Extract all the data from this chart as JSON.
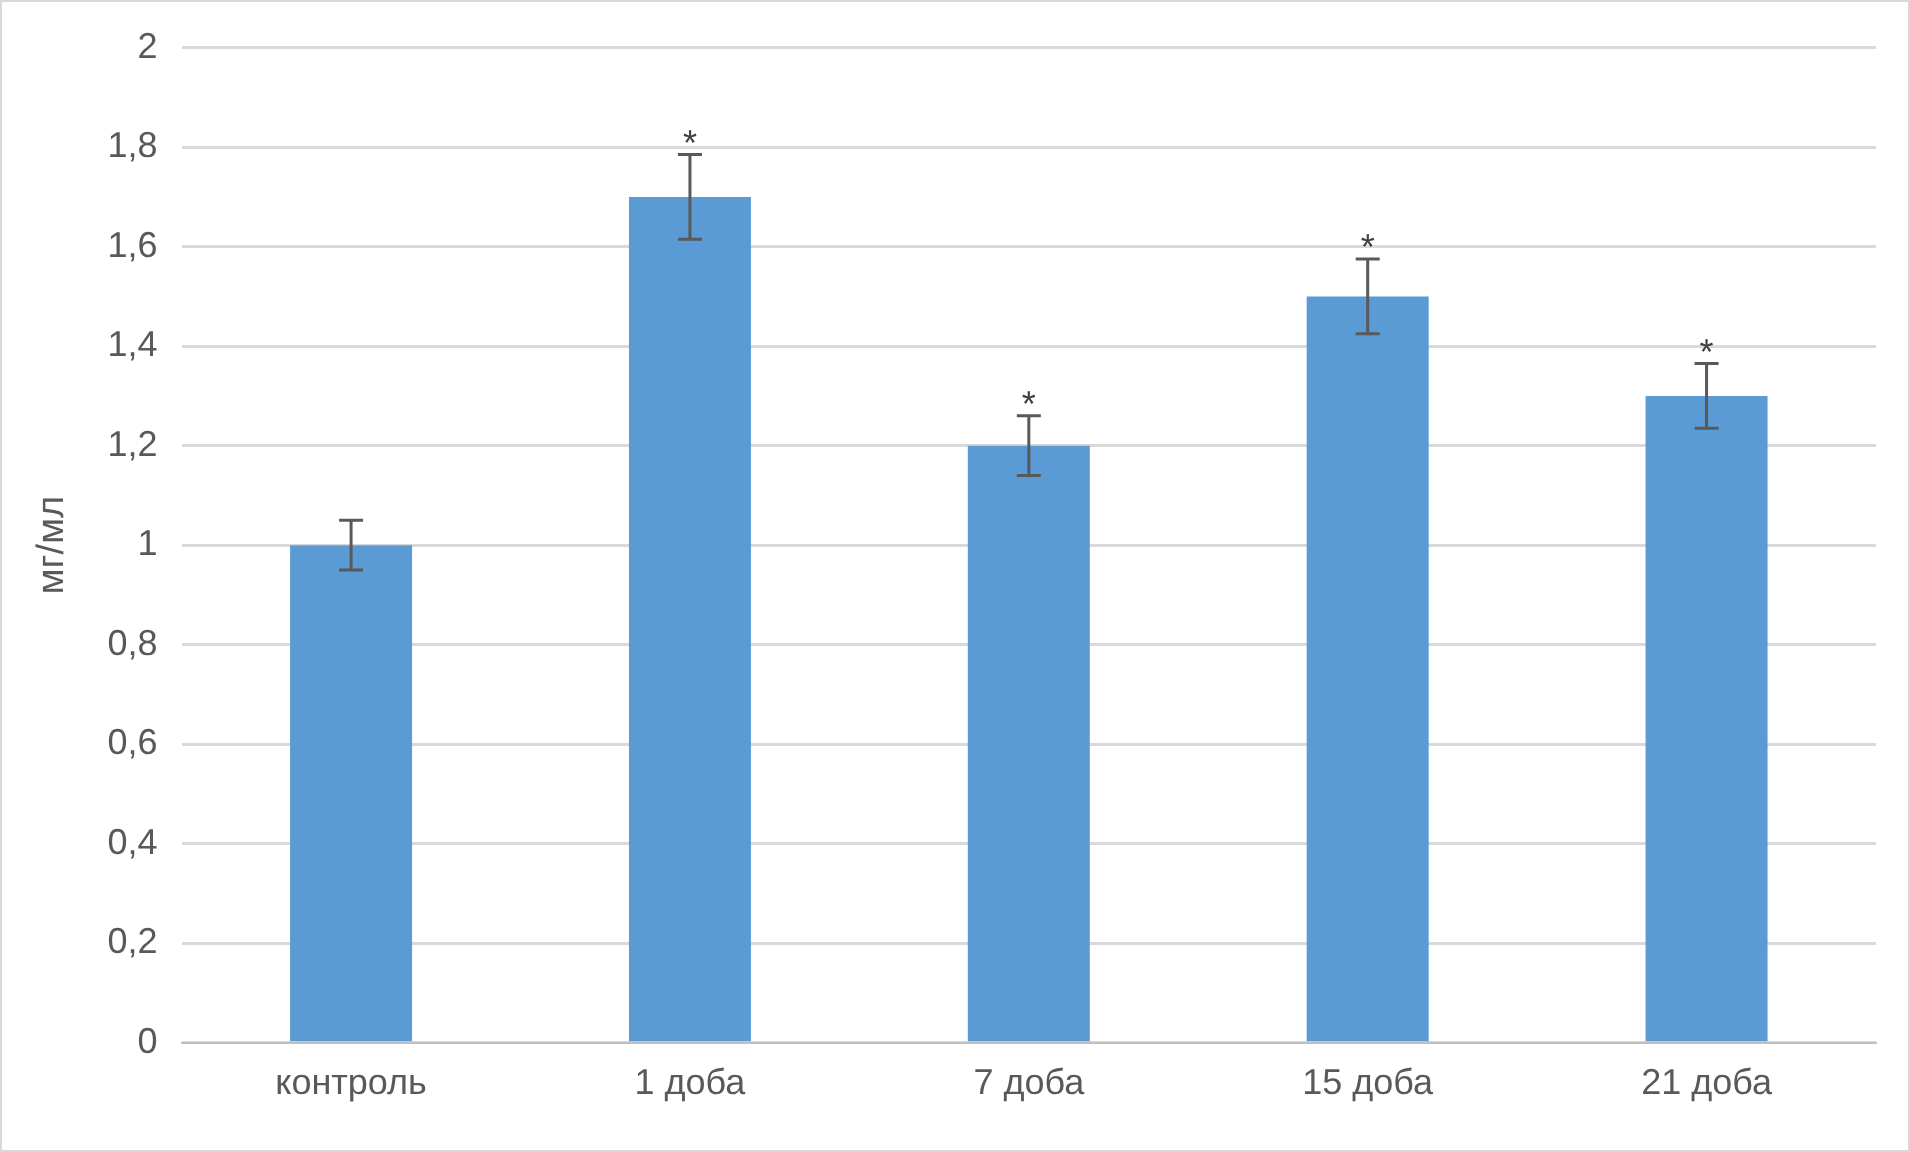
{
  "chart_data": {
    "type": "bar",
    "ylabel": "мг/мл",
    "categories": [
      "контроль",
      "1 доба",
      "7 доба",
      "15 доба",
      "21 доба"
    ],
    "values": [
      1.0,
      1.7,
      1.2,
      1.5,
      1.3
    ],
    "errors": [
      0.05,
      0.085,
      0.06,
      0.075,
      0.065
    ],
    "color": "#5b9bd5",
    "ylim": [
      0,
      2
    ],
    "yticks": [
      {
        "value": 0,
        "label": "0"
      },
      {
        "value": 0.2,
        "label": "0,2"
      },
      {
        "value": 0.4,
        "label": "0,4"
      },
      {
        "value": 0.6,
        "label": "0,6"
      },
      {
        "value": 0.8,
        "label": "0,8"
      },
      {
        "value": 1,
        "label": "1"
      },
      {
        "value": 1.2,
        "label": "1,2"
      },
      {
        "value": 1.4,
        "label": "1,4"
      },
      {
        "value": 1.6,
        "label": "1,6"
      },
      {
        "value": 1.8,
        "label": "1,8"
      },
      {
        "value": 2,
        "label": "2"
      }
    ],
    "grid": "y",
    "legend": false,
    "annotations": [
      {
        "text": "*",
        "x": "1 доба",
        "y": 1.785
      },
      {
        "text": "*",
        "x": "7 доба",
        "y": 1.26
      },
      {
        "text": "*",
        "x": "15 доба",
        "y": 1.575
      },
      {
        "text": "*",
        "x": "21 доба",
        "y": 1.365
      }
    ]
  }
}
